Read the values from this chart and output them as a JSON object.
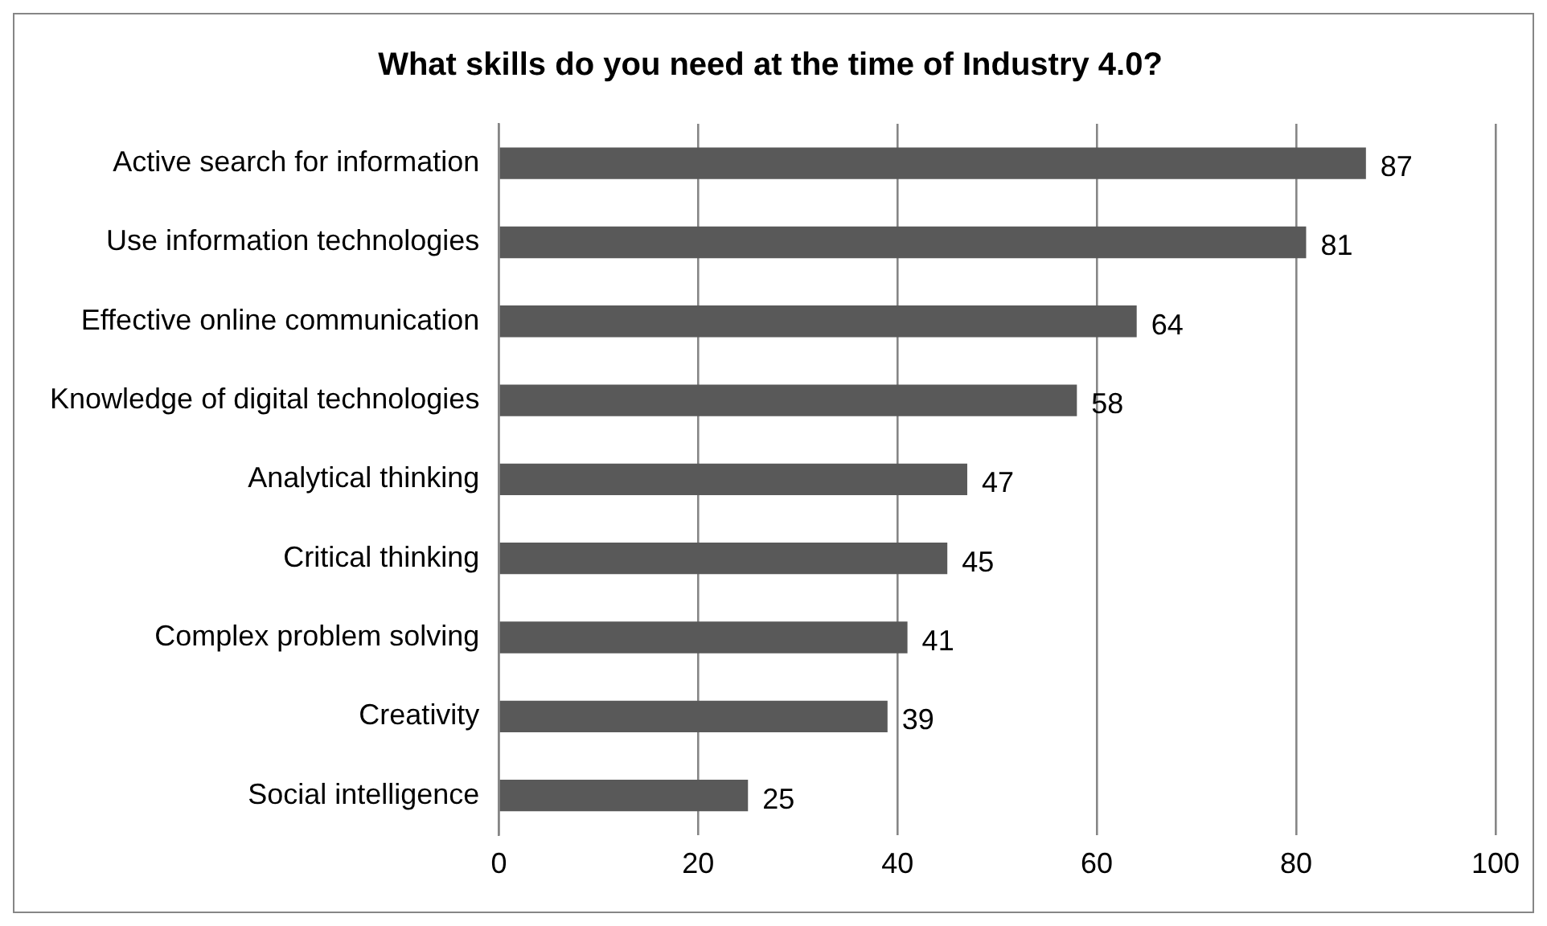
{
  "chart_data": {
    "type": "bar",
    "orientation": "horizontal",
    "title": "What skills do you need at the time of Industry 4.0?",
    "categories": [
      "Active search for information",
      "Use information technologies",
      "Effective online communication",
      "Knowledge of digital technologies",
      "Analytical thinking",
      "Critical thinking",
      "Complex problem solving",
      "Creativity",
      "Social intelligence"
    ],
    "values": [
      87,
      81,
      64,
      58,
      47,
      45,
      41,
      39,
      25
    ],
    "color": "#595959",
    "xlim": [
      0,
      100
    ],
    "xticks": [
      0,
      20,
      40,
      60,
      80,
      100
    ],
    "grid": "x",
    "legend": false,
    "data_labels": true
  }
}
